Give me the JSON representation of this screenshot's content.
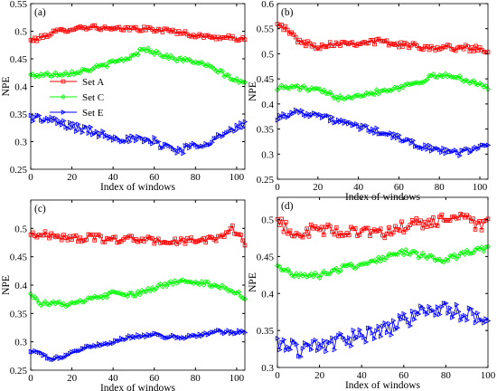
{
  "chart_data": [
    {
      "panel_label": "(a)",
      "type": "line",
      "xlabel": "Index of windows",
      "ylabel": "NPE",
      "xlim": [
        0,
        104
      ],
      "ylim": [
        0.25,
        0.55
      ],
      "xticks": [
        0,
        20,
        40,
        60,
        80,
        100
      ],
      "yticks": [
        0.25,
        0.3,
        0.35,
        0.4,
        0.45,
        0.5,
        0.55
      ],
      "ytick_labels": [
        "0.25",
        "0.3",
        "0.35",
        "0.4",
        "0.45",
        "0.5",
        "0.55"
      ],
      "legend": "center-left",
      "series": [
        {
          "name": "Set A",
          "color": "#ff0000",
          "marker": "square",
          "knots": [
            [
              0,
              0.483
            ],
            [
              5,
              0.488
            ],
            [
              10,
              0.497
            ],
            [
              20,
              0.505
            ],
            [
              30,
              0.508
            ],
            [
              40,
              0.503
            ],
            [
              50,
              0.505
            ],
            [
              60,
              0.503
            ],
            [
              70,
              0.5
            ],
            [
              80,
              0.492
            ],
            [
              90,
              0.489
            ],
            [
              100,
              0.487
            ],
            [
              104,
              0.484
            ]
          ],
          "noise": 0.004
        },
        {
          "name": "Set C",
          "color": "#00ff00",
          "marker": "diamond",
          "knots": [
            [
              0,
              0.42
            ],
            [
              10,
              0.422
            ],
            [
              20,
              0.425
            ],
            [
              30,
              0.432
            ],
            [
              40,
              0.443
            ],
            [
              50,
              0.455
            ],
            [
              55,
              0.47
            ],
            [
              60,
              0.462
            ],
            [
              70,
              0.45
            ],
            [
              80,
              0.445
            ],
            [
              90,
              0.43
            ],
            [
              100,
              0.41
            ],
            [
              104,
              0.406
            ]
          ],
          "noise": 0.004
        },
        {
          "name": "Set E",
          "color": "#0000ff",
          "marker": "triangle-right",
          "knots": [
            [
              0,
              0.345
            ],
            [
              10,
              0.338
            ],
            [
              20,
              0.328
            ],
            [
              30,
              0.318
            ],
            [
              40,
              0.31
            ],
            [
              50,
              0.303
            ],
            [
              60,
              0.3
            ],
            [
              68,
              0.29
            ],
            [
              72,
              0.284
            ],
            [
              80,
              0.293
            ],
            [
              90,
              0.306
            ],
            [
              100,
              0.323
            ],
            [
              104,
              0.332
            ]
          ],
          "noise": 0.008
        }
      ]
    },
    {
      "panel_label": "(b)",
      "type": "line",
      "xlabel": "Index of windows",
      "ylabel": "NPE",
      "xlim": [
        0,
        104
      ],
      "ylim": [
        0.25,
        0.6
      ],
      "xticks": [
        0,
        20,
        40,
        60,
        80,
        100
      ],
      "yticks": [
        0.25,
        0.3,
        0.35,
        0.4,
        0.45,
        0.5,
        0.55,
        0.6
      ],
      "ytick_labels": [
        "0.25",
        "0.3",
        "0.35",
        "0.4",
        "0.45",
        "0.5",
        "0.55",
        "0.6"
      ],
      "series": [
        {
          "name": "Set A",
          "color": "#ff0000",
          "marker": "square",
          "knots": [
            [
              0,
              0.565
            ],
            [
              5,
              0.545
            ],
            [
              12,
              0.522
            ],
            [
              20,
              0.515
            ],
            [
              30,
              0.522
            ],
            [
              40,
              0.522
            ],
            [
              50,
              0.525
            ],
            [
              60,
              0.518
            ],
            [
              70,
              0.515
            ],
            [
              80,
              0.512
            ],
            [
              90,
              0.512
            ],
            [
              100,
              0.51
            ],
            [
              104,
              0.505
            ]
          ],
          "noise": 0.006
        },
        {
          "name": "Set C",
          "color": "#00ff00",
          "marker": "diamond",
          "knots": [
            [
              0,
              0.433
            ],
            [
              10,
              0.433
            ],
            [
              20,
              0.427
            ],
            [
              30,
              0.413
            ],
            [
              40,
              0.418
            ],
            [
              50,
              0.425
            ],
            [
              60,
              0.433
            ],
            [
              70,
              0.445
            ],
            [
              80,
              0.458
            ],
            [
              90,
              0.452
            ],
            [
              100,
              0.44
            ],
            [
              104,
              0.43
            ]
          ],
          "noise": 0.005
        },
        {
          "name": "Set E",
          "color": "#0000ff",
          "marker": "triangle-right",
          "knots": [
            [
              0,
              0.373
            ],
            [
              10,
              0.385
            ],
            [
              20,
              0.378
            ],
            [
              30,
              0.365
            ],
            [
              40,
              0.355
            ],
            [
              50,
              0.345
            ],
            [
              60,
              0.332
            ],
            [
              70,
              0.318
            ],
            [
              80,
              0.307
            ],
            [
              90,
              0.302
            ],
            [
              100,
              0.315
            ],
            [
              104,
              0.318
            ]
          ],
          "noise": 0.006
        }
      ]
    },
    {
      "panel_label": "(c)",
      "type": "line",
      "xlabel": "Index of windows",
      "ylabel": "NPE",
      "xlim": [
        0,
        104
      ],
      "ylim": [
        0.25,
        0.55
      ],
      "xticks": [
        0,
        20,
        40,
        60,
        80,
        100
      ],
      "yticks": [
        0.25,
        0.3,
        0.35,
        0.4,
        0.45,
        0.5
      ],
      "ytick_labels": [
        "0.25",
        "0.3",
        "0.35",
        "0.4",
        "0.45",
        "0.5"
      ],
      "series": [
        {
          "name": "Set A",
          "color": "#ff0000",
          "marker": "square",
          "knots": [
            [
              0,
              0.49
            ],
            [
              10,
              0.488
            ],
            [
              20,
              0.482
            ],
            [
              30,
              0.484
            ],
            [
              40,
              0.48
            ],
            [
              50,
              0.482
            ],
            [
              60,
              0.478
            ],
            [
              70,
              0.477
            ],
            [
              80,
              0.478
            ],
            [
              90,
              0.482
            ],
            [
              98,
              0.5
            ],
            [
              104,
              0.475
            ]
          ],
          "noise": 0.006
        },
        {
          "name": "Set C",
          "color": "#00ff00",
          "marker": "diamond",
          "knots": [
            [
              0,
              0.385
            ],
            [
              5,
              0.368
            ],
            [
              10,
              0.368
            ],
            [
              20,
              0.366
            ],
            [
              30,
              0.376
            ],
            [
              40,
              0.385
            ],
            [
              50,
              0.382
            ],
            [
              60,
              0.395
            ],
            [
              70,
              0.405
            ],
            [
              75,
              0.41
            ],
            [
              80,
              0.405
            ],
            [
              90,
              0.4
            ],
            [
              100,
              0.388
            ],
            [
              104,
              0.378
            ]
          ],
          "noise": 0.004
        },
        {
          "name": "Set E",
          "color": "#0000ff",
          "marker": "triangle-right",
          "knots": [
            [
              0,
              0.283
            ],
            [
              5,
              0.279
            ],
            [
              10,
              0.27
            ],
            [
              15,
              0.272
            ],
            [
              20,
              0.282
            ],
            [
              30,
              0.292
            ],
            [
              40,
              0.3
            ],
            [
              50,
              0.31
            ],
            [
              60,
              0.312
            ],
            [
              70,
              0.308
            ],
            [
              80,
              0.31
            ],
            [
              90,
              0.318
            ],
            [
              100,
              0.317
            ],
            [
              104,
              0.318
            ]
          ],
          "noise": 0.003
        }
      ]
    },
    {
      "panel_label": "(d)",
      "type": "line",
      "xlabel": "Index of windows",
      "ylabel": "NPE",
      "xlim": [
        0,
        100
      ],
      "ylim": [
        0.3,
        0.53
      ],
      "xticks": [
        0,
        20,
        40,
        60,
        80,
        100
      ],
      "yticks": [
        0.3,
        0.35,
        0.4,
        0.45,
        0.5
      ],
      "ytick_labels": [
        "0.3",
        "0.35",
        "0.4",
        "0.45",
        "0.5"
      ],
      "series": [
        {
          "name": "Set A",
          "color": "#ff0000",
          "marker": "square",
          "knots": [
            [
              0,
              0.495
            ],
            [
              10,
              0.48
            ],
            [
              20,
              0.487
            ],
            [
              30,
              0.482
            ],
            [
              40,
              0.488
            ],
            [
              50,
              0.478
            ],
            [
              60,
              0.49
            ],
            [
              70,
              0.495
            ],
            [
              80,
              0.5
            ],
            [
              88,
              0.508
            ],
            [
              95,
              0.488
            ],
            [
              100,
              0.492
            ]
          ],
          "noise": 0.009
        },
        {
          "name": "Set C",
          "color": "#00ff00",
          "marker": "diamond",
          "knots": [
            [
              0,
              0.435
            ],
            [
              10,
              0.425
            ],
            [
              20,
              0.425
            ],
            [
              30,
              0.433
            ],
            [
              40,
              0.44
            ],
            [
              50,
              0.448
            ],
            [
              60,
              0.456
            ],
            [
              70,
              0.45
            ],
            [
              80,
              0.445
            ],
            [
              90,
              0.455
            ],
            [
              100,
              0.46
            ]
          ],
          "noise": 0.004
        },
        {
          "name": "Set E",
          "color": "#0000ff",
          "marker": "triangle-right",
          "knots": [
            [
              0,
              0.332
            ],
            [
              10,
              0.325
            ],
            [
              20,
              0.33
            ],
            [
              30,
              0.335
            ],
            [
              40,
              0.343
            ],
            [
              50,
              0.35
            ],
            [
              60,
              0.362
            ],
            [
              70,
              0.375
            ],
            [
              78,
              0.382
            ],
            [
              85,
              0.375
            ],
            [
              90,
              0.372
            ],
            [
              100,
              0.355
            ]
          ],
          "noise": 0.011
        }
      ]
    }
  ]
}
